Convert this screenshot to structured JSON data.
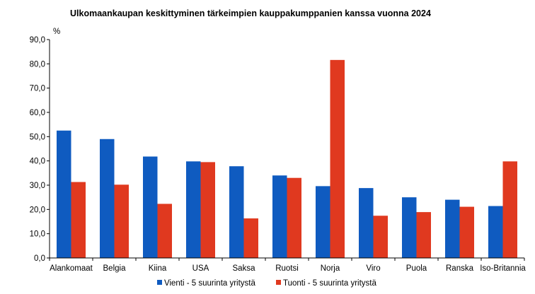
{
  "chart_data": {
    "type": "bar",
    "title": "Ulkomaankaupan keskittyminen  tärkeimpien kauppakumppanien kanssa  vuonna 2024",
    "ylabel": "%",
    "xlabel": "",
    "ylim": [
      0,
      90
    ],
    "ytick_step": 10,
    "ytick_labels": [
      "0,0",
      "10,0",
      "20,0",
      "30,0",
      "40,0",
      "50,0",
      "60,0",
      "70,0",
      "80,0",
      "90,0"
    ],
    "grid": false,
    "legend_position": "bottom",
    "categories": [
      "Alankomaat",
      "Belgia",
      "Kiina",
      "USA",
      "Saksa",
      "Ruotsi",
      "Norja",
      "Viro",
      "Puola",
      "Ranska",
      "Iso-Britannia"
    ],
    "series": [
      {
        "name": "Vienti - 5 suurinta yritystä",
        "color": "#0f5bc0",
        "values": [
          52.5,
          49.0,
          41.8,
          39.8,
          37.8,
          34.0,
          29.6,
          28.8,
          25.0,
          24.0,
          21.4
        ]
      },
      {
        "name": "Tuonti - 5 suurinta yritystä",
        "color": "#e0391f",
        "values": [
          31.3,
          30.2,
          22.3,
          39.5,
          16.3,
          33.0,
          81.6,
          17.4,
          18.9,
          21.1,
          39.8
        ]
      }
    ]
  }
}
